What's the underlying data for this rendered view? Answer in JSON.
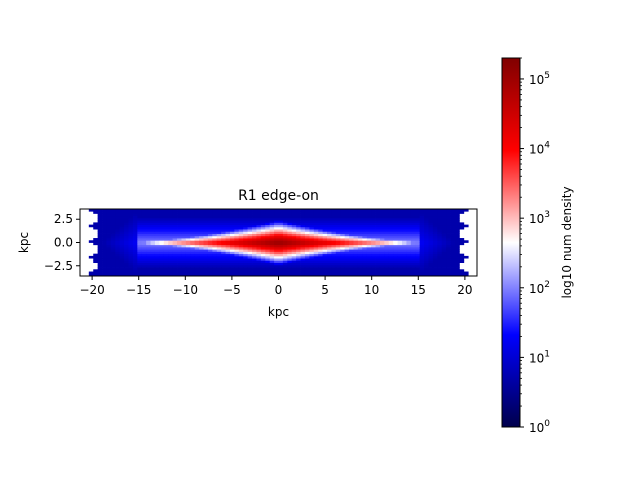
{
  "chart_data": [
    {
      "type": "heatmap",
      "title": "R1 edge-on",
      "xlabel": "kpc",
      "ylabel": "kpc",
      "xlim": [
        -21.3,
        21.3
      ],
      "ylim": [
        -3.6,
        3.6
      ],
      "x_ticks": [
        {
          "value": -20,
          "label": "−20"
        },
        {
          "value": -15,
          "label": "−15"
        },
        {
          "value": -10,
          "label": "−10"
        },
        {
          "value": -5,
          "label": "−5"
        },
        {
          "value": 0,
          "label": "0"
        },
        {
          "value": 5,
          "label": "5"
        },
        {
          "value": 10,
          "label": "10"
        },
        {
          "value": 15,
          "label": "15"
        },
        {
          "value": 20,
          "label": "20"
        }
      ],
      "y_ticks": [
        {
          "value": 2.5,
          "label": "2.5"
        },
        {
          "value": 0.0,
          "label": "0.0"
        },
        {
          "value": -2.5,
          "label": "−2.5"
        }
      ],
      "density_model": {
        "peak_log10": 5.2,
        "disk_half_length": 15,
        "peak_half_thickness": 1.25,
        "background_log10": 0.7,
        "outer_extent_x": 20.5,
        "outer_extent_y": 3.5
      },
      "grid": false,
      "colormap": "seismic"
    },
    {
      "type": "colorbar",
      "label": "log10 num density",
      "scale": "log",
      "range": [
        1,
        200000
      ],
      "ticks": [
        {
          "value": 1,
          "base": "10",
          "exp": "0"
        },
        {
          "value": 10,
          "base": "10",
          "exp": "1"
        },
        {
          "value": 100,
          "base": "10",
          "exp": "2"
        },
        {
          "value": 1000,
          "base": "10",
          "exp": "3"
        },
        {
          "value": 10000,
          "base": "10",
          "exp": "4"
        },
        {
          "value": 100000,
          "base": "10",
          "exp": "5"
        }
      ],
      "colors": {
        "low": "#00004c",
        "mid": "#ffffff",
        "high": "#800000"
      }
    }
  ]
}
